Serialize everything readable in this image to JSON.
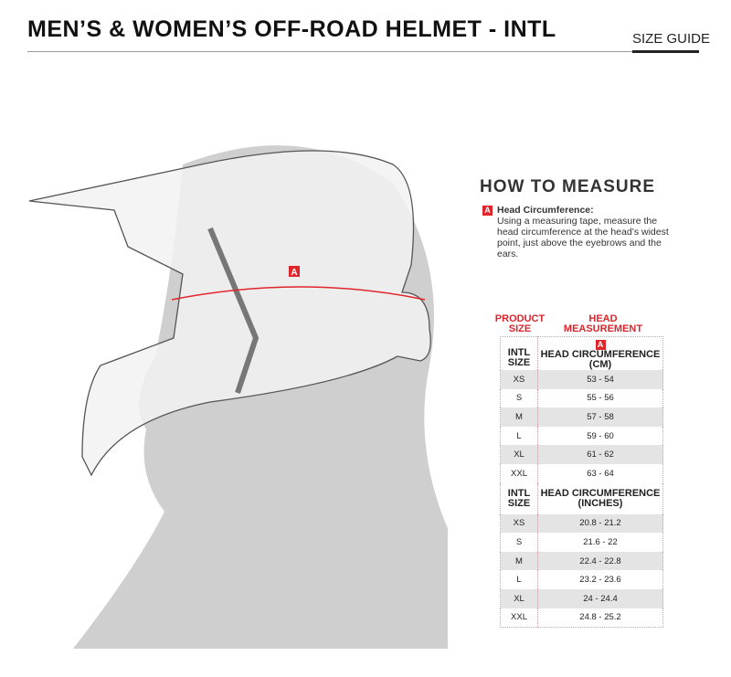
{
  "header": {
    "title": "MEN’S & WOMEN’S OFF-ROAD HELMET - INTL",
    "size_guide": "SIZE GUIDE"
  },
  "illustration": {
    "marker": "A",
    "accent": "#e0262b"
  },
  "how_to": {
    "title": "HOW TO MEASURE",
    "marker": "A",
    "label": "Head Circumference:",
    "description": "Using a measuring tape, measure the head circumference at the head’s widest point, just above the eyebrows and the ears."
  },
  "table": {
    "col1_header": "PRODUCT SIZE",
    "col2_header": "HEAD MEASUREMENT",
    "marker": "A",
    "sections": [
      {
        "size_label": "INTL SIZE",
        "unit_label": "HEAD CIRCUMFERENCE (CM)",
        "rows": [
          [
            "XS",
            "53 - 54"
          ],
          [
            "S",
            "55 - 56"
          ],
          [
            "M",
            "57 - 58"
          ],
          [
            "L",
            "59 - 60"
          ],
          [
            "XL",
            "61 - 62"
          ],
          [
            "XXL",
            "63 - 64"
          ]
        ]
      },
      {
        "size_label": "INTL SIZE",
        "unit_label": "HEAD CIRCUMFERENCE (INCHES)",
        "rows": [
          [
            "XS",
            "20.8 - 21.2"
          ],
          [
            "S",
            "21.6 - 22"
          ],
          [
            "M",
            "22.4 - 22.8"
          ],
          [
            "L",
            "23.2 - 23.6"
          ],
          [
            "XL",
            "24 - 24.4"
          ],
          [
            "XXL",
            "24.8 - 25.2"
          ]
        ]
      }
    ]
  }
}
